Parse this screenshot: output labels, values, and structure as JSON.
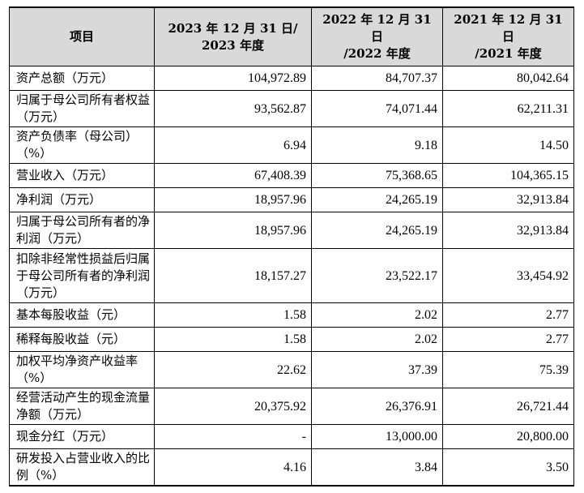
{
  "table": {
    "headers": [
      "项目",
      "2023 年 12 月 31 日/\n2023 年度",
      "2022 年 12 月 31 日\n/2022 年度",
      "2021 年 12 月 31 日\n/2021 年度"
    ],
    "rows": [
      {
        "label": "资产总额（万元）",
        "v2023": "104,972.89",
        "v2022": "84,707.37",
        "v2021": "80,042.64"
      },
      {
        "label": "归属于母公司所有者权益（万元）",
        "v2023": "93,562.87",
        "v2022": "74,071.44",
        "v2021": "62,211.31"
      },
      {
        "label": "资产负债率（母公司）（%）",
        "v2023": "6.94",
        "v2022": "9.18",
        "v2021": "14.50"
      },
      {
        "label": "营业收入（万元）",
        "v2023": "67,408.39",
        "v2022": "75,368.65",
        "v2021": "104,365.15"
      },
      {
        "label": "净利润（万元）",
        "v2023": "18,957.96",
        "v2022": "24,265.19",
        "v2021": "32,913.84"
      },
      {
        "label": "归属于母公司所有者的净利润（万元）",
        "v2023": "18,957.96",
        "v2022": "24,265.19",
        "v2021": "32,913.84"
      },
      {
        "label": "扣除非经常性损益后归属于母公司所有者的净利润（万元）",
        "v2023": "18,157.27",
        "v2022": "23,522.17",
        "v2021": "33,454.92"
      },
      {
        "label": "基本每股收益（元）",
        "v2023": "1.58",
        "v2022": "2.02",
        "v2021": "2.77"
      },
      {
        "label": "稀释每股收益（元）",
        "v2023": "1.58",
        "v2022": "2.02",
        "v2021": "2.77"
      },
      {
        "label": "加权平均净资产收益率（%）",
        "v2023": "22.62",
        "v2022": "37.39",
        "v2021": "75.39"
      },
      {
        "label": "经营活动产生的现金流量净额（万元）",
        "v2023": "20,375.92",
        "v2022": "26,376.91",
        "v2021": "26,721.44"
      },
      {
        "label": "现金分红（万元）",
        "v2023": "-",
        "v2022": "13,000.00",
        "v2021": "20,800.00"
      },
      {
        "label": "研发投入占营业收入的比例（%）",
        "v2023": "4.16",
        "v2022": "3.84",
        "v2021": "3.50"
      }
    ]
  }
}
